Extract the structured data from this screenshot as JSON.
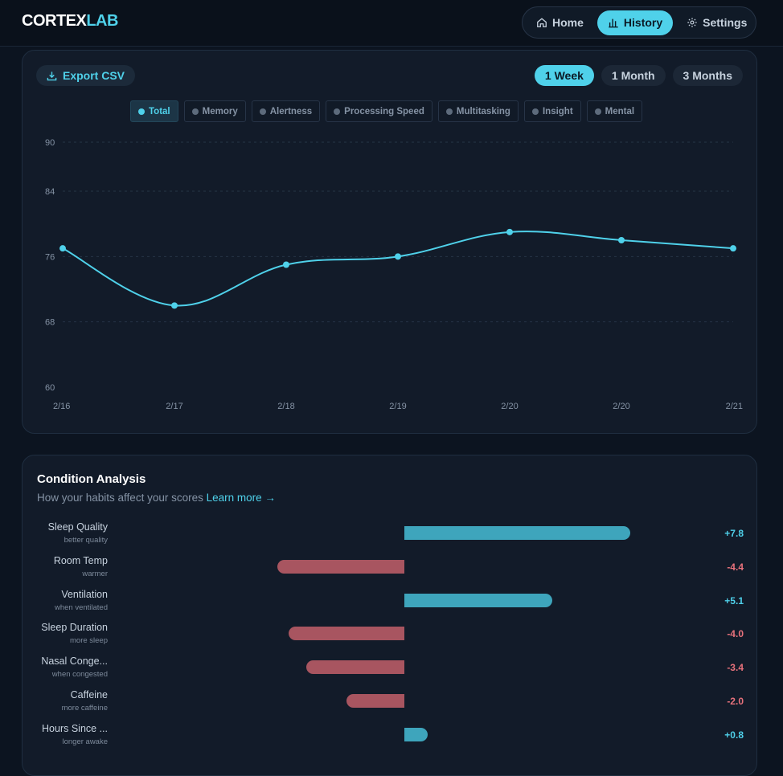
{
  "brand": {
    "part1": "CORTEX",
    "part2": "LAB"
  },
  "nav": [
    {
      "label": "Home",
      "icon": "home-icon",
      "active": false
    },
    {
      "label": "History",
      "icon": "bar-chart-icon",
      "active": true
    },
    {
      "label": "Settings",
      "icon": "gear-icon",
      "active": false
    }
  ],
  "toolbar": {
    "export_label": "Export CSV"
  },
  "ranges": [
    {
      "label": "1 Week",
      "active": true
    },
    {
      "label": "1 Month",
      "active": false
    },
    {
      "label": "3 Months",
      "active": false
    }
  ],
  "filters": [
    {
      "label": "Total",
      "active": true
    },
    {
      "label": "Memory",
      "active": false
    },
    {
      "label": "Alertness",
      "active": false
    },
    {
      "label": "Processing Speed",
      "active": false
    },
    {
      "label": "Multitasking",
      "active": false
    },
    {
      "label": "Insight",
      "active": false
    },
    {
      "label": "Mental",
      "active": false
    }
  ],
  "chart_data": {
    "type": "line",
    "title": "",
    "xlabel": "",
    "ylabel": "",
    "categories": [
      "2/16",
      "2/17",
      "2/18",
      "2/19",
      "2/20",
      "2/20",
      "2/21"
    ],
    "series": [
      {
        "name": "Total",
        "values": [
          77,
          70,
          75,
          76,
          79,
          78,
          77
        ]
      }
    ],
    "yticks": [
      90,
      84,
      76,
      68,
      60
    ],
    "ylim": [
      60,
      90
    ],
    "grid": true,
    "color": "#4fd1ea"
  },
  "condition": {
    "title": "Condition Analysis",
    "subtitle": "How your habits affect your scores",
    "link": "Learn more →",
    "max_abs": 10,
    "factors": [
      {
        "name": "Sleep Quality",
        "desc": "better quality",
        "value": 7.8,
        "display": "+7.8"
      },
      {
        "name": "Room Temp",
        "desc": "warmer",
        "value": -4.4,
        "display": "-4.4"
      },
      {
        "name": "Ventilation",
        "desc": "when ventilated",
        "value": 5.1,
        "display": "+5.1"
      },
      {
        "name": "Sleep Duration",
        "desc": "more sleep",
        "value": -4.0,
        "display": "-4.0"
      },
      {
        "name": "Nasal Conge...",
        "desc": "when congested",
        "value": -3.4,
        "display": "-3.4"
      },
      {
        "name": "Caffeine",
        "desc": "more caffeine",
        "value": -2.0,
        "display": "-2.0"
      },
      {
        "name": "Hours Since ...",
        "desc": "longer awake",
        "value": 0.8,
        "display": "+0.8"
      }
    ]
  }
}
